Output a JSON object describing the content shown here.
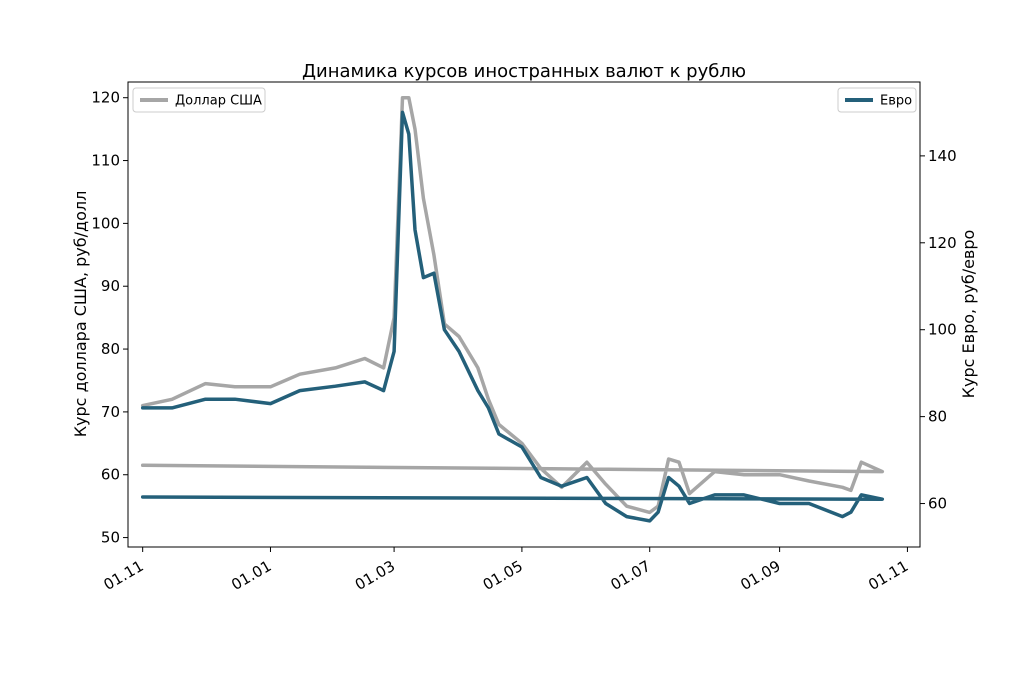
{
  "chart_data": {
    "type": "line",
    "title": "Динамика курсов иностранных валют к рублю",
    "xlabel": "",
    "ylabel_left": "Курс доллара США, руб/долл",
    "ylabel_right": "Курс Евро, руб/евро",
    "x_ticks": [
      "01.11",
      "01.01",
      "01.03",
      "01.05",
      "01.07",
      "01.09",
      "01.11"
    ],
    "y_left_ticks": [
      50,
      60,
      70,
      80,
      90,
      100,
      110,
      120
    ],
    "y_right_ticks": [
      60,
      80,
      100,
      120,
      140
    ],
    "y_left_lim": [
      48.5,
      122.5
    ],
    "y_right_lim": [
      50,
      157
    ],
    "grid": false,
    "series": [
      {
        "name": "Доллар США",
        "axis": "left",
        "color": "#a6a6a6",
        "legend_position": "top-left",
        "x": [
          "01.11",
          "15.11",
          "01.12",
          "15.12",
          "01.01",
          "15.01",
          "01.02",
          "15.02",
          "24.02",
          "01.03",
          "05.03",
          "08.03",
          "11.03",
          "15.03",
          "20.03",
          "25.03",
          "01.04",
          "10.04",
          "15.04",
          "20.04",
          "01.05",
          "10.05",
          "20.05",
          "01.06",
          "10.06",
          "20.06",
          "01.07",
          "05.07",
          "10.07",
          "15.07",
          "20.07",
          "01.08",
          "15.08",
          "01.09",
          "15.09",
          "01.10",
          "05.10",
          "10.10",
          "20.10",
          "01.11"
        ],
        "values": [
          71.0,
          72.0,
          74.5,
          74.0,
          74.0,
          76.0,
          77.0,
          78.5,
          77.0,
          85.0,
          120.0,
          120.0,
          115.0,
          104.0,
          95.0,
          84.0,
          82.0,
          77.0,
          72.0,
          68.0,
          65.0,
          61.0,
          58.0,
          62.0,
          58.5,
          55.0,
          54.0,
          55.0,
          62.5,
          62.0,
          57.0,
          60.5,
          60.0,
          60.0,
          59.0,
          58.0,
          57.5,
          62.0,
          60.5,
          61.5
        ]
      },
      {
        "name": "Евро",
        "axis": "right",
        "color": "#24607a",
        "legend_position": "top-right",
        "x": [
          "01.11",
          "15.11",
          "01.12",
          "15.12",
          "01.01",
          "15.01",
          "01.02",
          "15.02",
          "24.02",
          "01.03",
          "05.03",
          "08.03",
          "11.03",
          "15.03",
          "20.03",
          "25.03",
          "01.04",
          "10.04",
          "15.04",
          "20.04",
          "01.05",
          "10.05",
          "20.05",
          "01.06",
          "10.06",
          "20.06",
          "01.07",
          "05.07",
          "10.07",
          "15.07",
          "20.07",
          "01.08",
          "15.08",
          "01.09",
          "15.09",
          "01.10",
          "05.10",
          "10.10",
          "20.10",
          "01.11"
        ],
        "values": [
          82.0,
          82.0,
          84.0,
          84.0,
          83.0,
          86.0,
          87.0,
          88.0,
          86.0,
          95.0,
          150.0,
          145.0,
          123.0,
          112.0,
          113.0,
          100.0,
          95.0,
          86.0,
          82.0,
          76.0,
          73.0,
          66.0,
          64.0,
          66.0,
          60.0,
          57.0,
          56.0,
          58.0,
          66.0,
          64.0,
          60.0,
          62.0,
          62.0,
          60.0,
          60.0,
          57.0,
          58.0,
          62.0,
          61.0,
          61.5
        ]
      }
    ]
  }
}
